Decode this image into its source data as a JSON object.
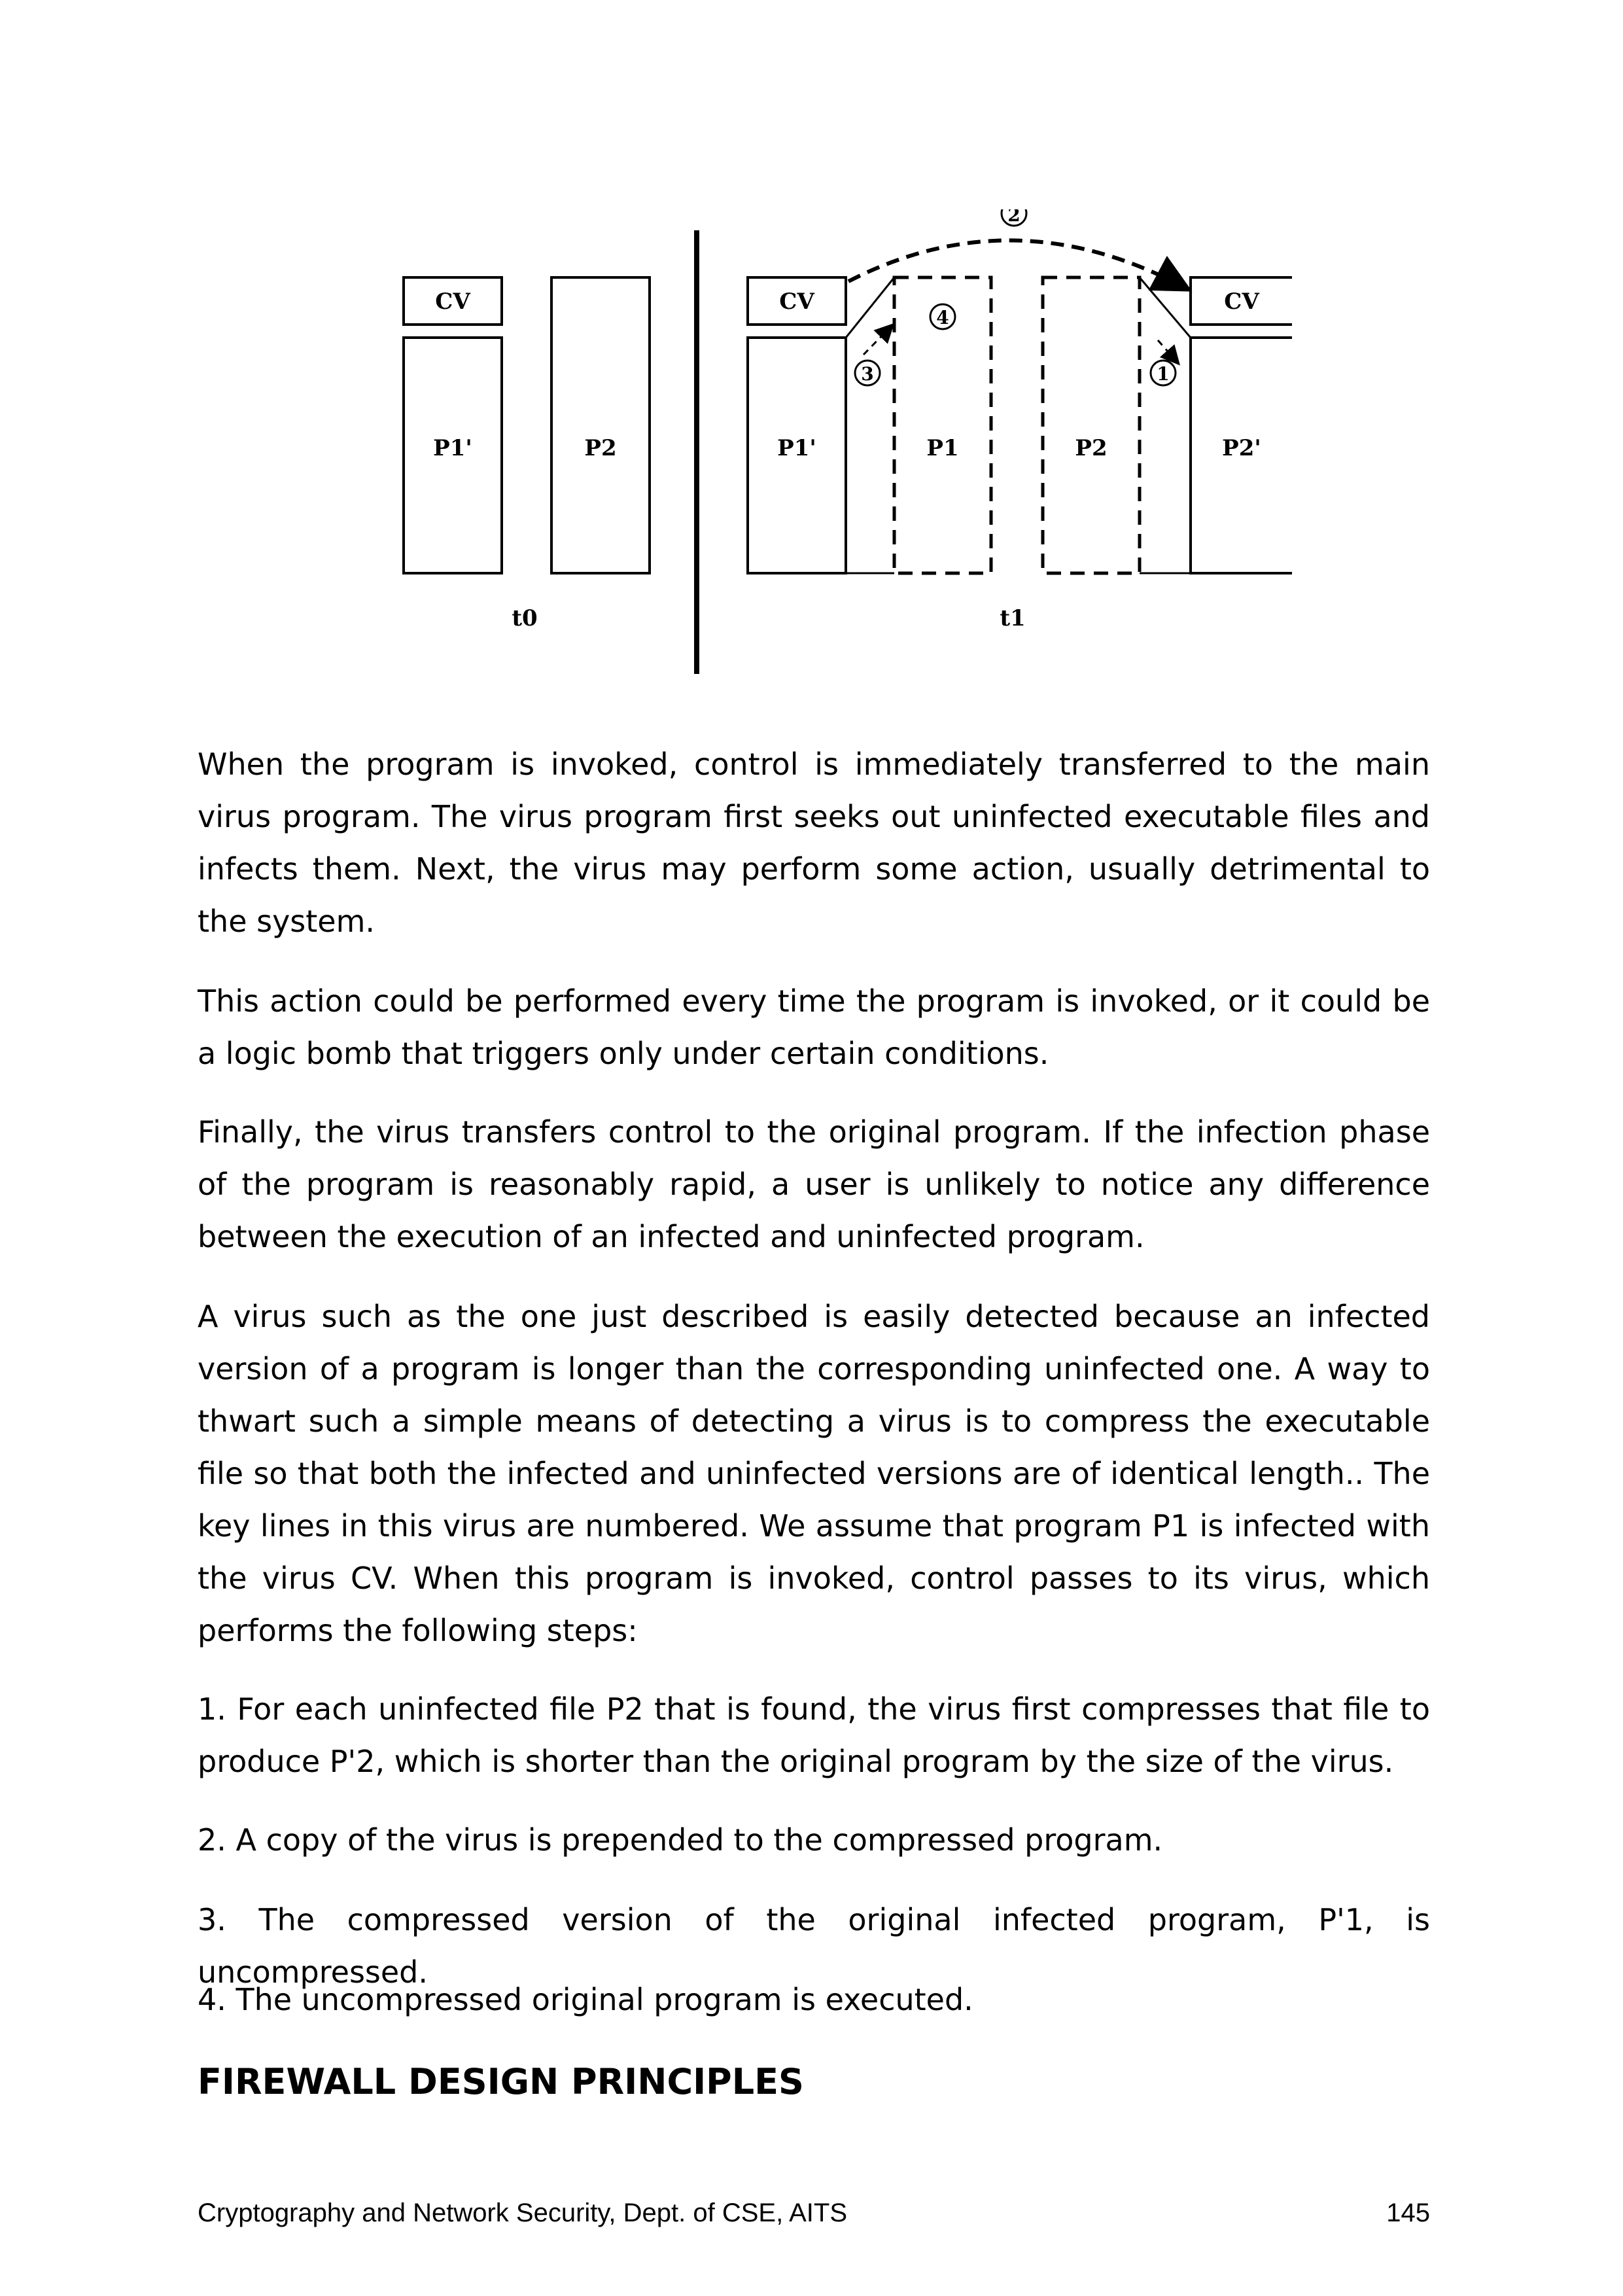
{
  "figure": {
    "left_panel": {
      "cv": "CV",
      "p1_prime": "P1'",
      "p2": "P2",
      "time_label": "t0"
    },
    "right_panel": {
      "cv_left": "CV",
      "p1_prime": "P1'",
      "p1": "P1",
      "p2": "P2",
      "cv_right": "CV",
      "p2_prime": "P2'",
      "time_label": "t1",
      "steps": [
        "1",
        "2",
        "3",
        "4"
      ]
    }
  },
  "paragraphs": [
    "When the program is invoked, control is immediately transferred to the main virus program. The virus program first seeks out uninfected executable files and infects them. Next, the virus may perform some action, usually detrimental to the system.",
    "This action could be performed every time the program is invoked, or it could be a logic bomb that triggers only under certain conditions.",
    "Finally, the virus transfers control to the original program. If the infection phase of the program is reasonably rapid, a user is unlikely to notice any difference between the execution of an infected and uninfected program.",
    "A virus such as the one just described is easily detected because an infected version of a program is longer than the corresponding uninfected one. A way to thwart such a simple means of detecting a virus is to compress the executable file so that both the infected and uninfected versions are of identical length.. The key lines in this virus are numbered. We assume that program P1 is infected with the virus CV. When this program is invoked, control passes to its virus, which performs the following steps:"
  ],
  "steps": [
    "1. For each uninfected file P2 that is found, the virus first compresses that file to produce P'2, which is shorter than the original program by the size of the virus.",
    "2. A copy of the virus is prepended to the compressed program.",
    "3. The compressed version of the original infected program, P'1, is uncompressed.",
    "4.  The uncompressed original program is executed."
  ],
  "heading": "FIREWALL DESIGN PRINCIPLES",
  "footer": {
    "left": "Cryptography and Network Security, Dept. of CSE, AITS",
    "page_number": "145"
  }
}
